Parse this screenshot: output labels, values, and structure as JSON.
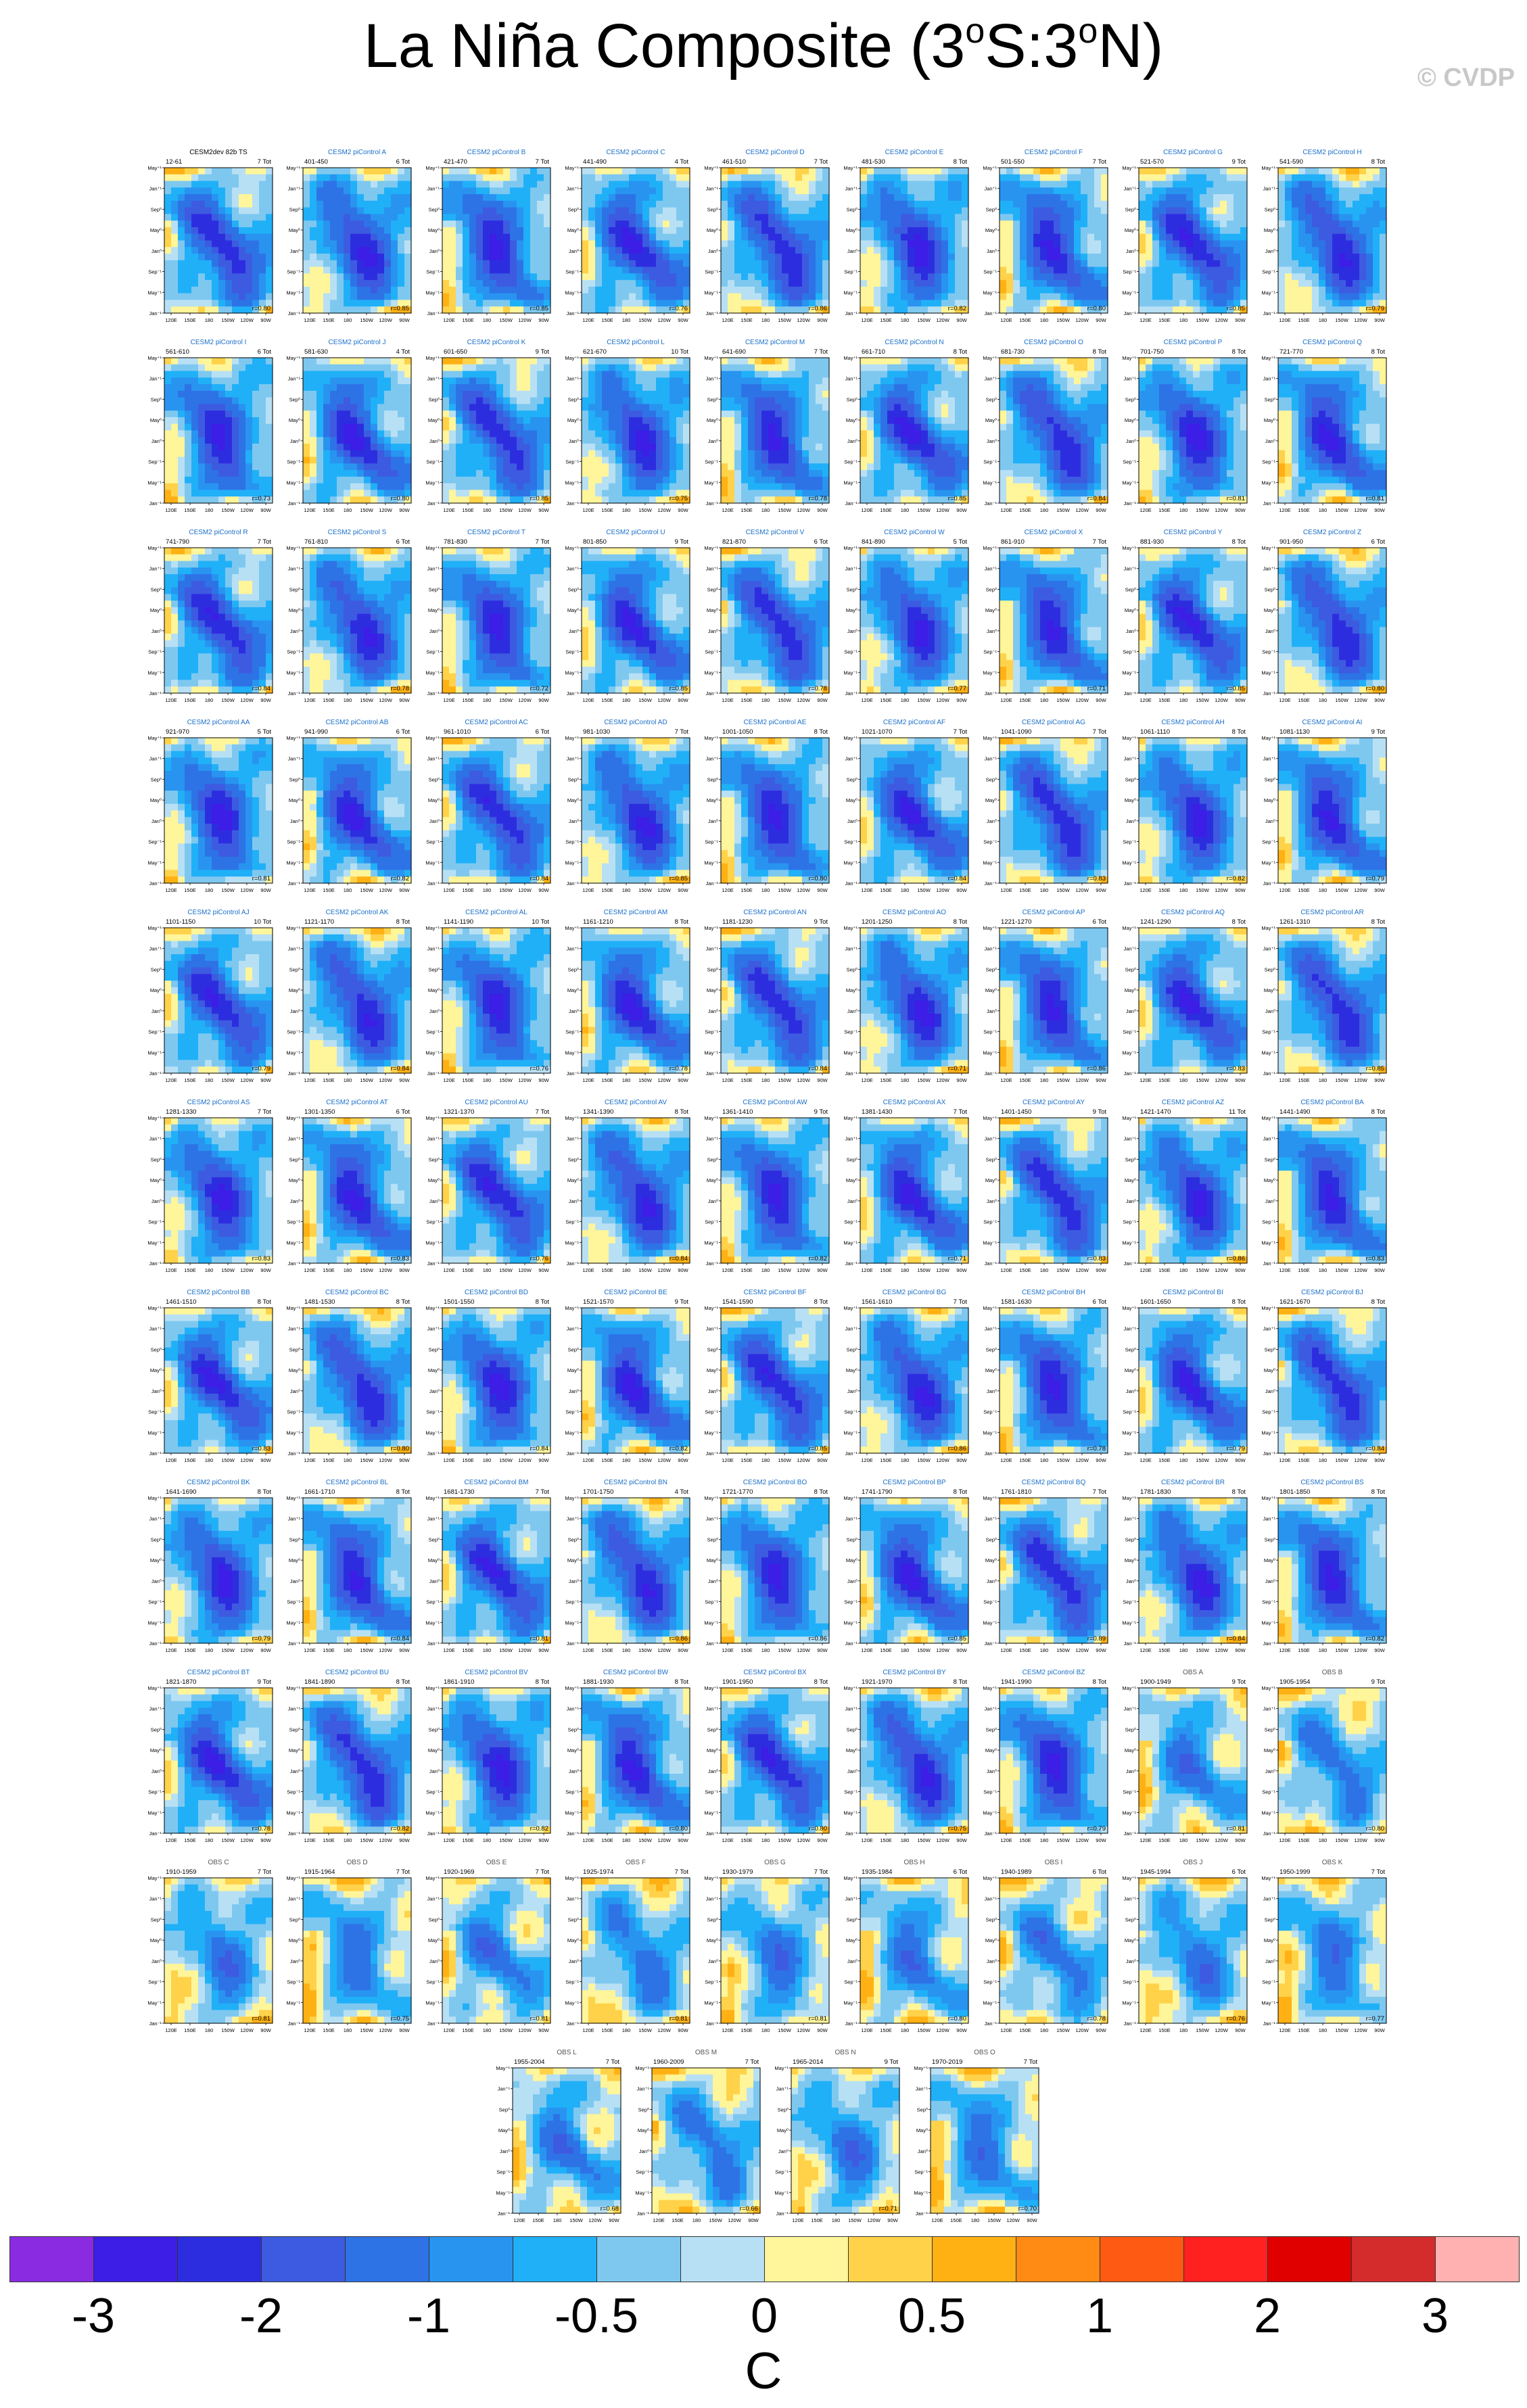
{
  "title": "La Niña Composite",
  "title_pre": "La Niña Composite (3",
  "title_mid1": "S:3",
  "title_post": "N)",
  "title_degree": "o",
  "watermark": "© CVDP",
  "colorbar": {
    "colors": [
      "#8a2be2",
      "#3c1ee6",
      "#2d2de0",
      "#3d5be0",
      "#2d73e6",
      "#2894f0",
      "#20b0f8",
      "#7ec8f0",
      "#b8e0f4",
      "#fff59a",
      "#ffd24a",
      "#ffb114",
      "#ff8a14",
      "#ff5a14",
      "#ff2020",
      "#e00000",
      "#d42c2c",
      "#ffb0b0"
    ],
    "labels": [
      "-3",
      "-2",
      "-1",
      "-0.5",
      "0",
      "0.5",
      "1",
      "2",
      "3"
    ],
    "unit": "C"
  },
  "panel_axes": {
    "y_ticks": [
      "May⁺¹",
      "Jan⁺¹",
      "Sep⁰",
      "May⁰",
      "Jan⁰",
      "Sep⁻¹",
      "May⁻¹",
      "Jan⁻¹"
    ],
    "x_ticks": [
      "120E",
      "150E",
      "180",
      "150W",
      "120W",
      "90W"
    ]
  },
  "chart_data": {
    "type": "heatmap",
    "title": "La Niña Composite (3°S:3°N)",
    "colorbar_unit": "C",
    "colorbar_labels": [
      -3,
      -2,
      -1,
      -0.5,
      0,
      0.5,
      1,
      2,
      3
    ],
    "x_ticks": [
      "120E",
      "150E",
      "180",
      "150W",
      "120W",
      "90W"
    ],
    "y_ticks": [
      "May⁺¹",
      "Jan⁺¹",
      "Sep⁰",
      "May⁰",
      "Jan⁰",
      "Sep⁻¹",
      "May⁻¹",
      "Jan⁻¹"
    ],
    "panels": [
      {
        "title": "CESM2dev 82b TS",
        "years": "12-61",
        "tot": "7 Tot",
        "r": "r=0.80",
        "obs": false
      },
      {
        "title": "CESM2 piControl A",
        "years": "401-450",
        "tot": "6 Tot",
        "r": "r=0.85",
        "obs": false
      },
      {
        "title": "CESM2 piControl B",
        "years": "421-470",
        "tot": "7 Tot",
        "r": "r=0.85",
        "obs": false
      },
      {
        "title": "CESM2 piControl C",
        "years": "441-490",
        "tot": "4 Tot",
        "r": "r=0.76",
        "obs": false
      },
      {
        "title": "CESM2 piControl D",
        "years": "461-510",
        "tot": "7 Tot",
        "r": "r=0.86",
        "obs": false
      },
      {
        "title": "CESM2 piControl E",
        "years": "481-530",
        "tot": "8 Tot",
        "r": "r=0.82",
        "obs": false
      },
      {
        "title": "CESM2 piControl F",
        "years": "501-550",
        "tot": "7 Tot",
        "r": "r=0.80",
        "obs": false
      },
      {
        "title": "CESM2 piControl G",
        "years": "521-570",
        "tot": "9 Tot",
        "r": "r=0.85",
        "obs": false
      },
      {
        "title": "CESM2 piControl H",
        "years": "541-590",
        "tot": "8 Tot",
        "r": "r=0.79",
        "obs": false
      },
      {
        "title": "CESM2 piControl I",
        "years": "561-610",
        "tot": "6 Tot",
        "r": "r=0.73",
        "obs": false
      },
      {
        "title": "CESM2 piControl J",
        "years": "581-630",
        "tot": "4 Tot",
        "r": "r=0.80",
        "obs": false
      },
      {
        "title": "CESM2 piControl K",
        "years": "601-650",
        "tot": "9 Tot",
        "r": "r=0.85",
        "obs": false
      },
      {
        "title": "CESM2 piControl L",
        "years": "621-670",
        "tot": "10 Tot",
        "r": "r=0.75",
        "obs": false
      },
      {
        "title": "CESM2 piControl M",
        "years": "641-690",
        "tot": "7 Tot",
        "r": "r=0.78",
        "obs": false
      },
      {
        "title": "CESM2 piControl N",
        "years": "661-710",
        "tot": "8 Tot",
        "r": "r=0.85",
        "obs": false
      },
      {
        "title": "CESM2 piControl O",
        "years": "681-730",
        "tot": "8 Tot",
        "r": "r=0.84",
        "obs": false
      },
      {
        "title": "CESM2 piControl P",
        "years": "701-750",
        "tot": "8 Tot",
        "r": "r=0.81",
        "obs": false
      },
      {
        "title": "CESM2 piControl Q",
        "years": "721-770",
        "tot": "8 Tot",
        "r": "r=0.81",
        "obs": false
      },
      {
        "title": "CESM2 piControl R",
        "years": "741-790",
        "tot": "7 Tot",
        "r": "r=0.84",
        "obs": false
      },
      {
        "title": "CESM2 piControl S",
        "years": "761-810",
        "tot": "6 Tot",
        "r": "r=0.78",
        "obs": false
      },
      {
        "title": "CESM2 piControl T",
        "years": "781-830",
        "tot": "7 Tot",
        "r": "r=0.72",
        "obs": false
      },
      {
        "title": "CESM2 piControl U",
        "years": "801-850",
        "tot": "9 Tot",
        "r": "r=0.85",
        "obs": false
      },
      {
        "title": "CESM2 piControl V",
        "years": "821-870",
        "tot": "6 Tot",
        "r": "r=0.78",
        "obs": false
      },
      {
        "title": "CESM2 piControl W",
        "years": "841-890",
        "tot": "5 Tot",
        "r": "r=0.77",
        "obs": false
      },
      {
        "title": "CESM2 piControl X",
        "years": "861-910",
        "tot": "7 Tot",
        "r": "r=0.71",
        "obs": false
      },
      {
        "title": "CESM2 piControl Y",
        "years": "881-930",
        "tot": "8 Tot",
        "r": "r=0.85",
        "obs": false
      },
      {
        "title": "CESM2 piControl Z",
        "years": "901-950",
        "tot": "6 Tot",
        "r": "r=0.80",
        "obs": false
      },
      {
        "title": "CESM2 piControl AA",
        "years": "921-970",
        "tot": "5 Tot",
        "r": "r=0.81",
        "obs": false
      },
      {
        "title": "CESM2 piControl AB",
        "years": "941-990",
        "tot": "6 Tot",
        "r": "r=0.82",
        "obs": false
      },
      {
        "title": "CESM2 piControl AC",
        "years": "961-1010",
        "tot": "6 Tot",
        "r": "r=0.84",
        "obs": false
      },
      {
        "title": "CESM2 piControl AD",
        "years": "981-1030",
        "tot": "7 Tot",
        "r": "r=0.85",
        "obs": false
      },
      {
        "title": "CESM2 piControl AE",
        "years": "1001-1050",
        "tot": "8 Tot",
        "r": "r=0.80",
        "obs": false
      },
      {
        "title": "CESM2 piControl AF",
        "years": "1021-1070",
        "tot": "7 Tot",
        "r": "r=0.84",
        "obs": false
      },
      {
        "title": "CESM2 piControl AG",
        "years": "1041-1090",
        "tot": "7 Tot",
        "r": "r=0.83",
        "obs": false
      },
      {
        "title": "CESM2 piControl AH",
        "years": "1061-1110",
        "tot": "8 Tot",
        "r": "r=0.82",
        "obs": false
      },
      {
        "title": "CESM2 piControl AI",
        "years": "1081-1130",
        "tot": "9 Tot",
        "r": "r=0.79",
        "obs": false
      },
      {
        "title": "CESM2 piControl AJ",
        "years": "1101-1150",
        "tot": "10 Tot",
        "r": "r=0.79",
        "obs": false
      },
      {
        "title": "CESM2 piControl AK",
        "years": "1121-1170",
        "tot": "8 Tot",
        "r": "r=0.84",
        "obs": false
      },
      {
        "title": "CESM2 piControl AL",
        "years": "1141-1190",
        "tot": "10 Tot",
        "r": "r=0.76",
        "obs": false
      },
      {
        "title": "CESM2 piControl AM",
        "years": "1161-1210",
        "tot": "8 Tot",
        "r": "r=0.78",
        "obs": false
      },
      {
        "title": "CESM2 piControl AN",
        "years": "1181-1230",
        "tot": "9 Tot",
        "r": "r=0.84",
        "obs": false
      },
      {
        "title": "CESM2 piControl AO",
        "years": "1201-1250",
        "tot": "8 Tot",
        "r": "r=0.71",
        "obs": false
      },
      {
        "title": "CESM2 piControl AP",
        "years": "1221-1270",
        "tot": "6 Tot",
        "r": "r=0.86",
        "obs": false
      },
      {
        "title": "CESM2 piControl AQ",
        "years": "1241-1290",
        "tot": "8 Tot",
        "r": "r=0.83",
        "obs": false
      },
      {
        "title": "CESM2 piControl AR",
        "years": "1261-1310",
        "tot": "8 Tot",
        "r": "r=0.85",
        "obs": false
      },
      {
        "title": "CESM2 piControl AS",
        "years": "1281-1330",
        "tot": "7 Tot",
        "r": "r=0.83",
        "obs": false
      },
      {
        "title": "CESM2 piControl AT",
        "years": "1301-1350",
        "tot": "6 Tot",
        "r": "r=0.83",
        "obs": false
      },
      {
        "title": "CESM2 piControl AU",
        "years": "1321-1370",
        "tot": "7 Tot",
        "r": "r=0.76",
        "obs": false
      },
      {
        "title": "CESM2 piControl AV",
        "years": "1341-1390",
        "tot": "8 Tot",
        "r": "r=0.84",
        "obs": false
      },
      {
        "title": "CESM2 piControl AW",
        "years": "1361-1410",
        "tot": "9 Tot",
        "r": "r=0.82",
        "obs": false
      },
      {
        "title": "CESM2 piControl AX",
        "years": "1381-1430",
        "tot": "7 Tot",
        "r": "r=0.71",
        "obs": false
      },
      {
        "title": "CESM2 piControl AY",
        "years": "1401-1450",
        "tot": "9 Tot",
        "r": "r=0.83",
        "obs": false
      },
      {
        "title": "CESM2 piControl AZ",
        "years": "1421-1470",
        "tot": "11 Tot",
        "r": "r=0.86",
        "obs": false
      },
      {
        "title": "CESM2 piControl BA",
        "years": "1441-1490",
        "tot": "8 Tot",
        "r": "r=0.83",
        "obs": false
      },
      {
        "title": "CESM2 piControl BB",
        "years": "1461-1510",
        "tot": "8 Tot",
        "r": "r=0.83",
        "obs": false
      },
      {
        "title": "CESM2 piControl BC",
        "years": "1481-1530",
        "tot": "8 Tot",
        "r": "r=0.80",
        "obs": false
      },
      {
        "title": "CESM2 piControl BD",
        "years": "1501-1550",
        "tot": "8 Tot",
        "r": "r=0.84",
        "obs": false
      },
      {
        "title": "CESM2 piControl BE",
        "years": "1521-1570",
        "tot": "9 Tot",
        "r": "r=0.82",
        "obs": false
      },
      {
        "title": "CESM2 piControl BF",
        "years": "1541-1590",
        "tot": "8 Tot",
        "r": "r=0.85",
        "obs": false
      },
      {
        "title": "CESM2 piControl BG",
        "years": "1561-1610",
        "tot": "7 Tot",
        "r": "r=0.86",
        "obs": false
      },
      {
        "title": "CESM2 piControl BH",
        "years": "1581-1630",
        "tot": "6 Tot",
        "r": "r=0.78",
        "obs": false
      },
      {
        "title": "CESM2 piControl BI",
        "years": "1601-1650",
        "tot": "8 Tot",
        "r": "r=0.79",
        "obs": false
      },
      {
        "title": "CESM2 piControl BJ",
        "years": "1621-1670",
        "tot": "8 Tot",
        "r": "r=0.84",
        "obs": false
      },
      {
        "title": "CESM2 piControl BK",
        "years": "1641-1690",
        "tot": "8 Tot",
        "r": "r=0.79",
        "obs": false
      },
      {
        "title": "CESM2 piControl BL",
        "years": "1661-1710",
        "tot": "8 Tot",
        "r": "r=0.84",
        "obs": false
      },
      {
        "title": "CESM2 piControl BM",
        "years": "1681-1730",
        "tot": "7 Tot",
        "r": "r=0.81",
        "obs": false
      },
      {
        "title": "CESM2 piControl BN",
        "years": "1701-1750",
        "tot": "4 Tot",
        "r": "r=0.86",
        "obs": false
      },
      {
        "title": "CESM2 piControl BO",
        "years": "1721-1770",
        "tot": "8 Tot",
        "r": "r=0.86",
        "obs": false
      },
      {
        "title": "CESM2 piControl BP",
        "years": "1741-1790",
        "tot": "8 Tot",
        "r": "r=0.85",
        "obs": false
      },
      {
        "title": "CESM2 piControl BQ",
        "years": "1761-1810",
        "tot": "7 Tot",
        "r": "r=0.89",
        "obs": false
      },
      {
        "title": "CESM2 piControl BR",
        "years": "1781-1830",
        "tot": "8 Tot",
        "r": "r=0.84",
        "obs": false
      },
      {
        "title": "CESM2 piControl BS",
        "years": "1801-1850",
        "tot": "8 Tot",
        "r": "r=0.82",
        "obs": false
      },
      {
        "title": "CESM2 piControl BT",
        "years": "1821-1870",
        "tot": "9 Tot",
        "r": "r=0.78",
        "obs": false
      },
      {
        "title": "CESM2 piControl BU",
        "years": "1841-1890",
        "tot": "8 Tot",
        "r": "r=0.82",
        "obs": false
      },
      {
        "title": "CESM2 piControl BV",
        "years": "1861-1910",
        "tot": "8 Tot",
        "r": "r=0.82",
        "obs": false
      },
      {
        "title": "CESM2 piControl BW",
        "years": "1881-1930",
        "tot": "8 Tot",
        "r": "r=0.80",
        "obs": false
      },
      {
        "title": "CESM2 piControl BX",
        "years": "1901-1950",
        "tot": "8 Tot",
        "r": "r=0.80",
        "obs": false
      },
      {
        "title": "CESM2 piControl BY",
        "years": "1921-1970",
        "tot": "8 Tot",
        "r": "r=0.75",
        "obs": false
      },
      {
        "title": "CESM2 piControl BZ",
        "years": "1941-1990",
        "tot": "8 Tot",
        "r": "r=0.79",
        "obs": false
      },
      {
        "title": "OBS A",
        "years": "1900-1949",
        "tot": "9 Tot",
        "r": "r=0.81",
        "obs": true
      },
      {
        "title": "OBS B",
        "years": "1905-1954",
        "tot": "9 Tot",
        "r": "r=0.80",
        "obs": true
      },
      {
        "title": "OBS C",
        "years": "1910-1959",
        "tot": "7 Tot",
        "r": "r=0.81",
        "obs": true
      },
      {
        "title": "OBS D",
        "years": "1915-1964",
        "tot": "7 Tot",
        "r": "r=0.75",
        "obs": true
      },
      {
        "title": "OBS E",
        "years": "1920-1969",
        "tot": "7 Tot",
        "r": "r=0.81",
        "obs": true
      },
      {
        "title": "OBS F",
        "years": "1925-1974",
        "tot": "7 Tot",
        "r": "r=0.81",
        "obs": true
      },
      {
        "title": "OBS G",
        "years": "1930-1979",
        "tot": "7 Tot",
        "r": "r=0.81",
        "obs": true
      },
      {
        "title": "OBS H",
        "years": "1935-1984",
        "tot": "6 Tot",
        "r": "r=0.80",
        "obs": true
      },
      {
        "title": "OBS I",
        "years": "1940-1989",
        "tot": "6 Tot",
        "r": "r=0.78",
        "obs": true
      },
      {
        "title": "OBS J",
        "years": "1945-1994",
        "tot": "6 Tot",
        "r": "r=0.76",
        "obs": true
      },
      {
        "title": "OBS K",
        "years": "1950-1999",
        "tot": "7 Tot",
        "r": "r=0.77",
        "obs": true
      },
      {
        "title": "OBS L",
        "years": "1955-2004",
        "tot": "7 Tot",
        "r": "r=0.68",
        "obs": true
      },
      {
        "title": "OBS M",
        "years": "1960-2009",
        "tot": "7 Tot",
        "r": "r=0.66",
        "obs": true
      },
      {
        "title": "OBS N",
        "years": "1965-2014",
        "tot": "9 Tot",
        "r": "r=0.71",
        "obs": true
      },
      {
        "title": "OBS O",
        "years": "1970-2019",
        "tot": "7 Tot",
        "r": "r=0.70",
        "obs": true
      }
    ]
  }
}
